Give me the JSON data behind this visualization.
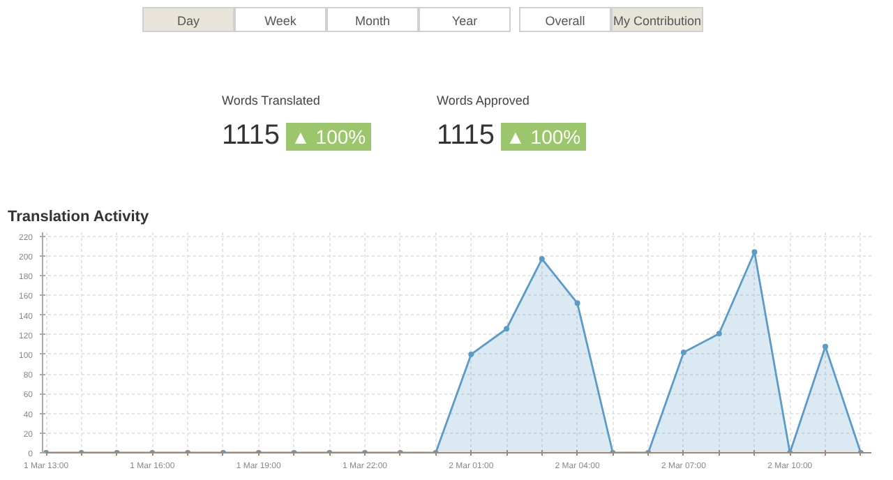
{
  "chart_data": [
    {
      "type": "other",
      "color": "#9cc66b",
      "annotations": [
        "Day",
        "Week",
        "Month",
        "Year",
        "Overall",
        "My Contribution",
        "Words Translated",
        "1115",
        "▲ 100%",
        "Words Approved",
        "1115",
        "▲ 100%"
      ]
    },
    {
      "type": "area",
      "title": "Translation Activity",
      "color": "#5b9bc8",
      "categories": [
        "1 Mar 13:00",
        null,
        null,
        "1 Mar 16:00",
        null,
        null,
        "1 Mar 19:00",
        null,
        null,
        "1 Mar 22:00",
        null,
        null,
        "2 Mar 01:00",
        null,
        null,
        "2 Mar 04:00",
        null,
        null,
        "2 Mar 07:00",
        null,
        null,
        "2 Mar 10:00",
        null,
        null
      ],
      "values": [
        0,
        0,
        0,
        0,
        0,
        0,
        0,
        0,
        0,
        0,
        0,
        0,
        100,
        126,
        197,
        152,
        0,
        0,
        102,
        121,
        204,
        0,
        108,
        0
      ],
      "ylim": [
        0,
        224
      ],
      "yticks": [
        0,
        20,
        40,
        60,
        80,
        100,
        120,
        140,
        160,
        180,
        200,
        220
      ],
      "grid": true,
      "marker": "circle"
    }
  ]
}
